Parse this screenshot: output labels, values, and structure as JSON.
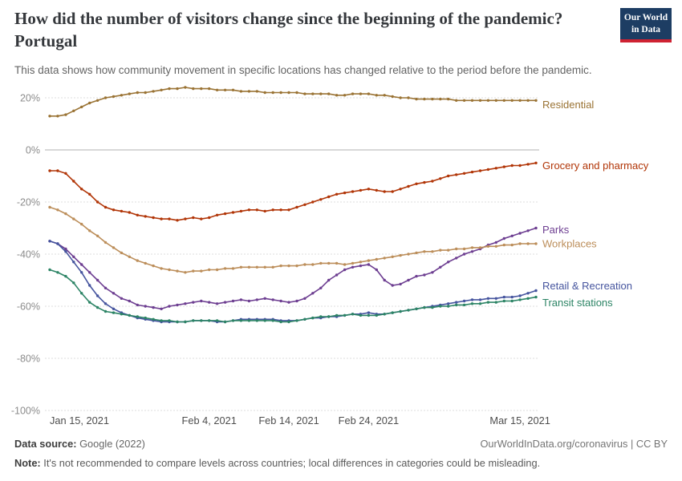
{
  "logo": {
    "line1": "Our World",
    "line2": "in Data"
  },
  "brand": {
    "navy_color": "#1d3d63",
    "red_color": "#cf2232"
  },
  "header": {
    "title": "How did the number of visitors change since the beginning of the pandemic? Portugal",
    "subtitle": "This data shows how community movement in specific locations has changed relative to the period before the pandemic."
  },
  "footer": {
    "source_label": "Data source:",
    "source_value": "Google (2022)",
    "credit": "OurWorldInData.org/coronavirus | CC BY",
    "note_label": "Note:",
    "note_value": "It's not recommended to compare levels across countries; local differences in categories could be misleading."
  },
  "chart_data": {
    "type": "line",
    "title": "How did the number of visitors change since the beginning of the pandemic? Portugal",
    "x_unit": "date, daily from Jan 15, 2021 to Mar 17, 2021",
    "ylim": [
      -100,
      25
    ],
    "grid": "dashed horizontal, solid zero line",
    "legend_position": "right-end-of-line labels",
    "y_ticks": [
      20,
      0,
      -20,
      -40,
      -60,
      -80,
      -100
    ],
    "x_ticks": [
      {
        "day": 0,
        "label": "Jan 15, 2021"
      },
      {
        "day": 20,
        "label": "Feb 4, 2021"
      },
      {
        "day": 30,
        "label": "Feb 14, 2021"
      },
      {
        "day": 40,
        "label": "Feb 24, 2021"
      },
      {
        "day": 59,
        "label": "Mar 15, 2021"
      }
    ],
    "series": [
      {
        "name": "Residential",
        "color": "#9a7334",
        "label_dy": 5,
        "values": [
          13,
          13,
          13.5,
          15,
          16.5,
          18,
          19,
          20,
          20.5,
          21,
          21.5,
          22,
          22,
          22.5,
          23,
          23.5,
          23.5,
          24,
          23.5,
          23.5,
          23.5,
          23,
          23,
          23,
          22.5,
          22.5,
          22.5,
          22,
          22,
          22,
          22,
          22,
          21.5,
          21.5,
          21.5,
          21.5,
          21,
          21,
          21.5,
          21.5,
          21.5,
          21,
          21,
          20.5,
          20,
          20,
          19.5,
          19.5,
          19.5,
          19.5,
          19.5,
          19,
          19,
          19,
          19,
          19,
          19,
          19,
          19,
          19,
          19,
          19
        ]
      },
      {
        "name": "Grocery and pharmacy",
        "color": "#b13507",
        "label_dy": 3,
        "values": [
          -8,
          -8,
          -9,
          -12,
          -15,
          -17,
          -20,
          -22,
          -23,
          -23.5,
          -24,
          -25,
          -25.5,
          -26,
          -26.5,
          -26.5,
          -27,
          -26.5,
          -26,
          -26.5,
          -26,
          -25,
          -24.5,
          -24,
          -23.5,
          -23,
          -23,
          -23.5,
          -23,
          -23,
          -23,
          -22,
          -21,
          -20,
          -19,
          -18,
          -17,
          -16.5,
          -16,
          -15.5,
          -15,
          -15.5,
          -16,
          -16,
          -15,
          -14,
          -13,
          -12.5,
          -12,
          -11,
          -10,
          -9.5,
          -9,
          -8.5,
          -8,
          -7.5,
          -7,
          -6.5,
          -6,
          -6,
          -5.5,
          -5
        ]
      },
      {
        "name": "Parks",
        "color": "#6d3e91",
        "label_dy": 2,
        "values": [
          -35,
          -36,
          -38,
          -41,
          -44,
          -47,
          -50,
          -53,
          -55,
          -57,
          -58,
          -59.5,
          -60,
          -60.5,
          -61,
          -60,
          -59.5,
          -59,
          -58.5,
          -58,
          -58.5,
          -59,
          -58.5,
          -58,
          -57.5,
          -58,
          -57.5,
          -57,
          -57.5,
          -58,
          -58.5,
          -58,
          -57,
          -55,
          -53,
          -50,
          -48,
          -46,
          -45,
          -44.5,
          -44,
          -46,
          -50,
          -52,
          -51.5,
          -50,
          -48.5,
          -48,
          -47,
          -45,
          -43,
          -41.5,
          -40,
          -39,
          -38,
          -36.5,
          -35.5,
          -34,
          -33,
          -32,
          -31,
          -30
        ]
      },
      {
        "name": "Workplaces",
        "color": "#bc8e5a",
        "label_dy": 0,
        "values": [
          -22,
          -23,
          -24.5,
          -26.5,
          -28.5,
          -31,
          -33,
          -35.5,
          -37.5,
          -39.5,
          -41,
          -42.5,
          -43.5,
          -44.5,
          -45.5,
          -46,
          -46.5,
          -47,
          -46.5,
          -46.5,
          -46,
          -46,
          -45.5,
          -45.5,
          -45,
          -45,
          -45,
          -45,
          -45,
          -44.5,
          -44.5,
          -44.5,
          -44,
          -44,
          -43.5,
          -43.5,
          -43.5,
          -44,
          -43.5,
          -43,
          -42.5,
          -42,
          -41.5,
          -41,
          -40.5,
          -40,
          -39.5,
          -39,
          -39,
          -38.5,
          -38.5,
          -38,
          -38,
          -37.5,
          -37.5,
          -37,
          -37,
          -36.5,
          -36.5,
          -36,
          -36,
          -36
        ]
      },
      {
        "name": "Retail & Recreation",
        "color": "#45549e",
        "label_dy": -6,
        "values": [
          -35,
          -36,
          -39,
          -43,
          -47,
          -52,
          -56,
          -59,
          -61,
          -62.5,
          -63.5,
          -64.5,
          -65,
          -65.5,
          -66,
          -66,
          -66,
          -66,
          -65.5,
          -65.5,
          -65.5,
          -66,
          -66,
          -65.5,
          -65,
          -65,
          -65,
          -65,
          -65,
          -65.5,
          -65.5,
          -65.5,
          -65,
          -64.5,
          -64.5,
          -64,
          -64,
          -63.5,
          -63,
          -63,
          -62.5,
          -63,
          -63,
          -62.5,
          -62,
          -61.5,
          -61,
          -60.5,
          -60,
          -59.5,
          -59,
          -58.5,
          -58,
          -57.5,
          -57.5,
          -57,
          -57,
          -56.5,
          -56.5,
          -56,
          -55,
          -54
        ]
      },
      {
        "name": "Transit stations",
        "color": "#2c8465",
        "label_dy": 7,
        "values": [
          -46,
          -47,
          -48.5,
          -51,
          -55,
          -58.5,
          -60.5,
          -62,
          -62.5,
          -63,
          -63.5,
          -64,
          -64.5,
          -65,
          -65.5,
          -65.5,
          -66,
          -66,
          -65.5,
          -65.5,
          -65.5,
          -65.5,
          -66,
          -65.5,
          -65.5,
          -65.5,
          -65.5,
          -65.5,
          -65.5,
          -66,
          -66,
          -65.5,
          -65,
          -64.5,
          -64,
          -64,
          -63.5,
          -63.5,
          -63,
          -63.5,
          -63.5,
          -63.5,
          -63,
          -62.5,
          -62,
          -61.5,
          -61,
          -60.5,
          -60.5,
          -60,
          -60,
          -59.5,
          -59.5,
          -59,
          -59,
          -58.5,
          -58.5,
          -58,
          -58,
          -57.5,
          -57,
          -56.5
        ]
      }
    ]
  }
}
